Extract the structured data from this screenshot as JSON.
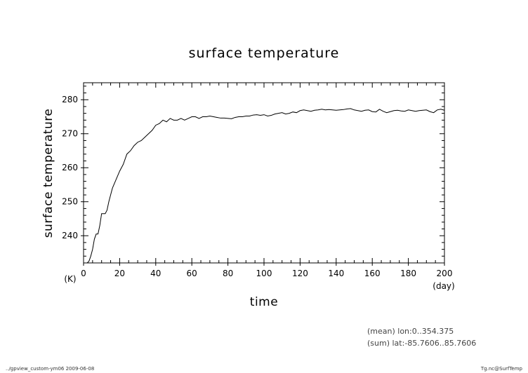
{
  "chart_data": {
    "type": "line",
    "title": "surface temperature",
    "xlabel": "time",
    "ylabel": "surface temperature",
    "x_unit": "(day)",
    "y_unit": "(K)",
    "xlim": [
      0,
      200
    ],
    "ylim": [
      232,
      285
    ],
    "x_ticks": [
      0,
      20,
      40,
      60,
      80,
      100,
      120,
      140,
      160,
      180,
      200
    ],
    "y_ticks": [
      240,
      250,
      260,
      270,
      280
    ],
    "grid": false,
    "series": [
      {
        "name": "",
        "x": [
          0,
          2,
          3,
          4,
          5,
          6,
          7,
          8,
          9,
          10,
          11,
          12,
          13,
          14,
          15,
          16,
          18,
          20,
          22,
          24,
          26,
          28,
          30,
          32,
          34,
          36,
          38,
          40,
          42,
          44,
          46,
          48,
          50,
          52,
          54,
          56,
          58,
          60,
          62,
          64,
          66,
          68,
          70,
          72,
          74,
          76,
          78,
          80,
          82,
          84,
          86,
          88,
          90,
          92,
          94,
          96,
          98,
          100,
          102,
          104,
          106,
          108,
          110,
          112,
          114,
          116,
          118,
          120,
          122,
          124,
          126,
          128,
          130,
          132,
          134,
          136,
          138,
          140,
          142,
          144,
          146,
          148,
          150,
          152,
          154,
          156,
          158,
          160,
          162,
          164,
          166,
          168,
          170,
          172,
          174,
          176,
          178,
          180,
          182,
          184,
          186,
          188,
          190,
          192,
          194,
          196,
          198,
          200
        ],
        "values": [
          232,
          232,
          232.5,
          234,
          236,
          239,
          240.5,
          240.5,
          243,
          246.5,
          246.5,
          246.5,
          247.5,
          250,
          252,
          254,
          256.5,
          259,
          261,
          264,
          265,
          266.5,
          267.5,
          268,
          269,
          270,
          271,
          272.5,
          273,
          274,
          273.5,
          274.5,
          274,
          274,
          274.5,
          274,
          274.5,
          275,
          275,
          274.5,
          275,
          275,
          275.2,
          275,
          274.8,
          274.6,
          274.6,
          274.5,
          274.4,
          274.8,
          275,
          275,
          275.2,
          275.2,
          275.5,
          275.6,
          275.4,
          275.6,
          275.2,
          275.4,
          275.8,
          276,
          276.2,
          275.8,
          276,
          276.4,
          276.2,
          276.8,
          277,
          276.8,
          276.6,
          276.9,
          277,
          277.2,
          277,
          277.1,
          277,
          276.9,
          277,
          277.1,
          277.3,
          277.4,
          277,
          276.8,
          276.6,
          276.9,
          277,
          276.5,
          276.4,
          277.2,
          276.6,
          276.2,
          276.5,
          276.8,
          276.9,
          276.7,
          276.6,
          277,
          276.8,
          276.6,
          276.8,
          276.9,
          277,
          276.5,
          276.2,
          277,
          277.2,
          276.9
        ]
      }
    ],
    "annotations": [
      "(mean) lon:0..354.375",
      "(sum) lat:-85.7606..85.7606"
    ]
  },
  "footer": {
    "left": "../gpview_custom-ym06  2009-06-08",
    "right": "Tg.nc@SurfTemp"
  }
}
